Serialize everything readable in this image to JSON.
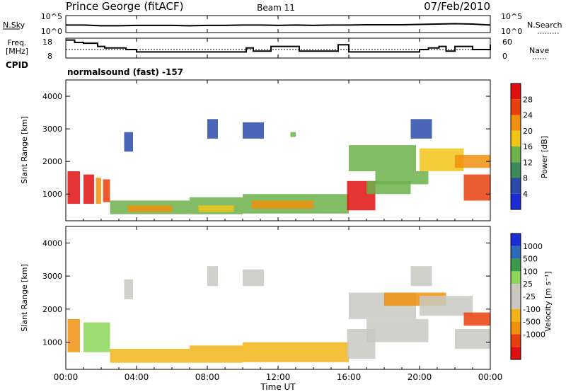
{
  "header": {
    "title": "Prince George (fitACF)",
    "beam": "Beam 11",
    "date": "07/Feb/2010"
  },
  "left_labels": {
    "nsky": "N.Sky",
    "freq_line1": "Freq.",
    "freq_line2": "[MHz]",
    "cpid": "CPID"
  },
  "right_labels": {
    "nsearch": "N.Search",
    "nave": "Nave"
  },
  "cpid_text": "normalsound (fast) -157",
  "colors": {
    "power_scale": [
      "#1a2cd6",
      "#2a4aa8",
      "#3a8a5a",
      "#6cb24a",
      "#f2c418",
      "#f0900e",
      "#e8400c",
      "#e01010"
    ],
    "velocity_scale": [
      "#e01010",
      "#e8400c",
      "#f0900e",
      "#f2b418",
      "#c9c9c2",
      "#c9c9c2",
      "#8cd65a",
      "#3a9a4a",
      "#2a6ab8",
      "#1a2cd6"
    ],
    "line": "#000000"
  },
  "chart_data": [
    {
      "type": "line",
      "name": "noise-panel",
      "left_axis": {
        "ticks": [
          "10^5",
          "10^0"
        ],
        "label": "N.Sky"
      },
      "right_axis": {
        "ticks": [
          "10^5",
          "10^0"
        ],
        "label": "N.Search"
      },
      "x": [
        0,
        1,
        2,
        3,
        4,
        5,
        6,
        7,
        8,
        9,
        10,
        11,
        12,
        13,
        14,
        15,
        16,
        17,
        18,
        19,
        20,
        21,
        22,
        23,
        24
      ],
      "values": [
        2.2,
        2.2,
        2.0,
        2.0,
        2.1,
        2.1,
        2.1,
        2.0,
        2.1,
        2.1,
        2.2,
        2.2,
        2.1,
        2.2,
        2.1,
        2.2,
        2.2,
        2.3,
        2.3,
        2.3,
        2.4,
        2.5,
        2.6,
        2.5,
        2.2
      ]
    },
    {
      "type": "line",
      "name": "frequency-panel",
      "left_axis": {
        "ticks": [
          "18",
          "8"
        ],
        "range": [
          8,
          18
        ],
        "label": "Freq. [MHz]"
      },
      "right_axis": {
        "ticks": [
          "60",
          "0"
        ],
        "range": [
          0,
          60
        ],
        "label": "Nave"
      },
      "x": [
        0,
        0.5,
        1,
        1.8,
        2.2,
        3.4,
        4,
        8,
        10.2,
        10.6,
        11.3,
        11.6,
        12.2,
        13.2,
        14,
        15.4,
        16,
        18,
        19.6,
        20,
        20.5,
        21.1,
        21.5,
        22,
        22.5,
        23,
        23.4,
        24
      ],
      "values": [
        18,
        16.5,
        16,
        14,
        13,
        12,
        10.5,
        10.5,
        13,
        11,
        11,
        14,
        14,
        11,
        11,
        15,
        10.5,
        10.5,
        10.5,
        12,
        13,
        14,
        11,
        14,
        14,
        12,
        12,
        15
      ]
    },
    {
      "type": "heatmap",
      "name": "power-panel",
      "title": "",
      "xlabel": "",
      "ylabel": "Slant Range [km]",
      "colorbar_label": "Power [dB]",
      "colorbar_ticks": [
        4,
        8,
        12,
        16,
        20,
        24,
        28
      ],
      "x_ticks": [
        "00:00",
        "04:00",
        "08:00",
        "12:00",
        "16:00",
        "20:00",
        "00:00"
      ],
      "y_ticks": [
        1000,
        2000,
        3000,
        4000
      ],
      "x_range_hours": [
        0,
        24
      ],
      "y_range_km": [
        180,
        4500
      ],
      "regions": [
        {
          "t0": 0.1,
          "t1": 0.8,
          "r0": 700,
          "r1": 1700,
          "level": 7
        },
        {
          "t0": 1.0,
          "t1": 1.6,
          "r0": 700,
          "r1": 1600,
          "level": 7
        },
        {
          "t0": 1.7,
          "t1": 2.0,
          "r0": 700,
          "r1": 1500,
          "level": 5
        },
        {
          "t0": 2.1,
          "t1": 2.5,
          "r0": 750,
          "r1": 1450,
          "level": 6
        },
        {
          "t0": 3.3,
          "t1": 3.8,
          "r0": 2300,
          "r1": 2900,
          "level": 1
        },
        {
          "t0": 2.5,
          "t1": 7.0,
          "r0": 380,
          "r1": 800,
          "level": 3
        },
        {
          "t0": 3.5,
          "t1": 6.0,
          "r0": 450,
          "r1": 650,
          "level": 5
        },
        {
          "t0": 7.0,
          "t1": 10.0,
          "r0": 380,
          "r1": 900,
          "level": 3
        },
        {
          "t0": 7.5,
          "t1": 9.5,
          "r0": 450,
          "r1": 650,
          "level": 4
        },
        {
          "t0": 10.0,
          "t1": 16.0,
          "r0": 400,
          "r1": 1000,
          "level": 3
        },
        {
          "t0": 10.5,
          "t1": 14.0,
          "r0": 550,
          "r1": 800,
          "level": 5
        },
        {
          "t0": 8.0,
          "t1": 8.6,
          "r0": 2700,
          "r1": 3300,
          "level": 1
        },
        {
          "t0": 10.0,
          "t1": 11.2,
          "r0": 2700,
          "r1": 3200,
          "level": 1
        },
        {
          "t0": 12.7,
          "t1": 13.0,
          "r0": 2750,
          "r1": 2900,
          "level": 3
        },
        {
          "t0": 15.9,
          "t1": 17.5,
          "r0": 500,
          "r1": 1400,
          "level": 7
        },
        {
          "t0": 17.0,
          "t1": 19.5,
          "r0": 1000,
          "r1": 1400,
          "level": 3
        },
        {
          "t0": 16.0,
          "t1": 19.8,
          "r0": 1700,
          "r1": 2500,
          "level": 3
        },
        {
          "t0": 17.5,
          "t1": 20.5,
          "r0": 1300,
          "r1": 1700,
          "level": 3
        },
        {
          "t0": 20.0,
          "t1": 22.5,
          "r0": 1700,
          "r1": 2400,
          "level": 4
        },
        {
          "t0": 22.0,
          "t1": 24.0,
          "r0": 1800,
          "r1": 2200,
          "level": 5
        },
        {
          "t0": 22.5,
          "t1": 24.0,
          "r0": 800,
          "r1": 1600,
          "level": 6
        },
        {
          "t0": 19.5,
          "t1": 20.7,
          "r0": 2700,
          "r1": 3300,
          "level": 1
        }
      ]
    },
    {
      "type": "heatmap",
      "name": "velocity-panel",
      "title": "",
      "xlabel": "Time UT",
      "ylabel": "Slant Range [km]",
      "colorbar_label": "Velocity [m s⁻¹]",
      "colorbar_ticks": [
        1000,
        500,
        100,
        25,
        -25,
        -100,
        -500,
        -1000
      ],
      "x_ticks": [
        "00:00",
        "04:00",
        "08:00",
        "12:00",
        "16:00",
        "20:00",
        "00:00"
      ],
      "y_ticks": [
        1000,
        2000,
        3000,
        4000
      ],
      "x_range_hours": [
        0,
        24
      ],
      "y_range_km": [
        180,
        4500
      ],
      "regions": [
        {
          "t0": 0.1,
          "t1": 0.8,
          "r0": 700,
          "r1": 1700,
          "level": 2
        },
        {
          "t0": 1.0,
          "t1": 2.5,
          "r0": 700,
          "r1": 1600,
          "level": 6
        },
        {
          "t0": 3.3,
          "t1": 3.8,
          "r0": 2300,
          "r1": 2900,
          "level": 4
        },
        {
          "t0": 2.5,
          "t1": 7.0,
          "r0": 380,
          "r1": 800,
          "level": 3
        },
        {
          "t0": 7.0,
          "t1": 10.0,
          "r0": 380,
          "r1": 900,
          "level": 3
        },
        {
          "t0": 10.0,
          "t1": 16.0,
          "r0": 400,
          "r1": 1000,
          "level": 3
        },
        {
          "t0": 8.0,
          "t1": 8.6,
          "r0": 2700,
          "r1": 3300,
          "level": 4
        },
        {
          "t0": 10.0,
          "t1": 11.2,
          "r0": 2700,
          "r1": 3200,
          "level": 4
        },
        {
          "t0": 15.9,
          "t1": 17.5,
          "r0": 500,
          "r1": 1400,
          "level": 4
        },
        {
          "t0": 16.0,
          "t1": 19.8,
          "r0": 1700,
          "r1": 2500,
          "level": 4
        },
        {
          "t0": 17.0,
          "t1": 20.5,
          "r0": 1000,
          "r1": 1700,
          "level": 4
        },
        {
          "t0": 18.0,
          "t1": 21.5,
          "r0": 2100,
          "r1": 2500,
          "level": 2
        },
        {
          "t0": 20.0,
          "t1": 23.0,
          "r0": 1800,
          "r1": 2400,
          "level": 4
        },
        {
          "t0": 22.5,
          "t1": 24.0,
          "r0": 1500,
          "r1": 1900,
          "level": 1
        },
        {
          "t0": 22.0,
          "t1": 24.0,
          "r0": 800,
          "r1": 1400,
          "level": 4
        },
        {
          "t0": 19.5,
          "t1": 20.7,
          "r0": 2700,
          "r1": 3300,
          "level": 4
        }
      ]
    }
  ],
  "time_axis": {
    "ticks": [
      "00:00",
      "04:00",
      "08:00",
      "12:00",
      "16:00",
      "20:00",
      "00:00"
    ],
    "label": "Time UT"
  }
}
